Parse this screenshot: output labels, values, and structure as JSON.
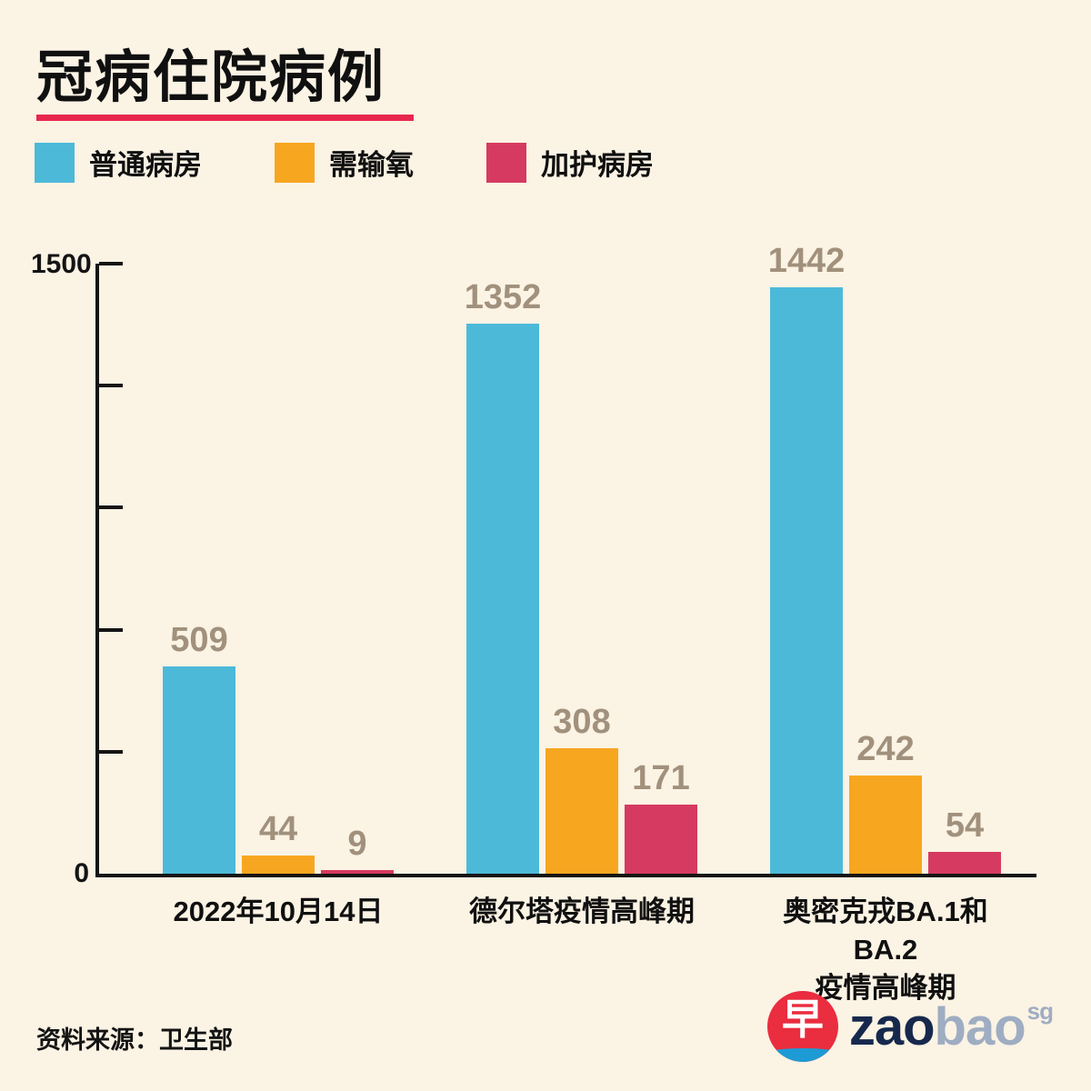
{
  "page": {
    "title": "冠病住院病例",
    "source": "资料来源：卫生部",
    "background_color": "#fbf3e4",
    "accent_underline_color": "#e8274e"
  },
  "legend": [
    {
      "key": "general-ward",
      "label": "普通病房",
      "color": "#4db9d9"
    },
    {
      "key": "needs-oxygen",
      "label": "需输氧",
      "color": "#f7a620"
    },
    {
      "key": "icu",
      "label": "加护病房",
      "color": "#d63a60"
    }
  ],
  "y_axis": {
    "top_label": "1500",
    "zero_label": "0"
  },
  "chart_data": {
    "type": "bar",
    "title": "冠病住院病例",
    "categories": [
      "2022年10月14日",
      "德尔塔疫情高峰期",
      "奥密克戎BA.1和BA.2\n疫情高峰期"
    ],
    "series": [
      {
        "key": "general-ward",
        "name": "普通病房",
        "color": "#4db9d9",
        "values": [
          509,
          1352,
          1442
        ]
      },
      {
        "key": "needs-oxygen",
        "name": "需输氧",
        "color": "#f7a620",
        "values": [
          44,
          308,
          242
        ]
      },
      {
        "key": "icu",
        "name": "加护病房",
        "color": "#d63a60",
        "values": [
          9,
          171,
          54
        ]
      }
    ],
    "ylim": [
      0,
      1500
    ],
    "yticks": [
      0,
      300,
      600,
      900,
      1200,
      1500
    ],
    "grid": false,
    "legend_position": "top",
    "value_label_color": "#a1917c",
    "xlabel": "",
    "ylabel": ""
  },
  "logo": {
    "circle_char": "早",
    "zao": "zao",
    "bao": "bao",
    "sg": "sg"
  }
}
